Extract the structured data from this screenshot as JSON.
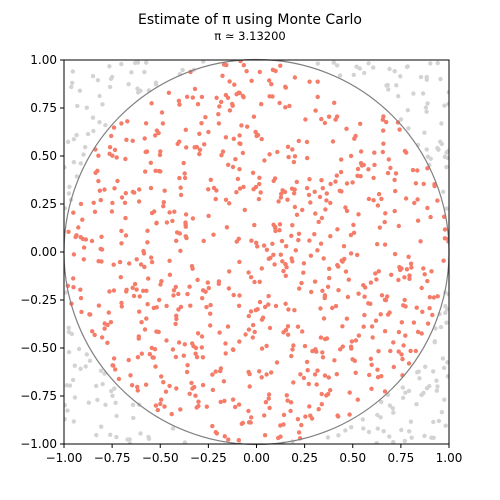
{
  "chart_data": {
    "type": "scatter",
    "title": "Estimate of π using Monte Carlo",
    "subtitle": "π ≃ 3.13200",
    "xlabel": "",
    "ylabel": "",
    "xlim": [
      -1.0,
      1.0
    ],
    "ylim": [
      -1.0,
      1.0
    ],
    "xticks": [
      "−1.00",
      "−0.75",
      "−0.50",
      "−0.25",
      "0.00",
      "0.25",
      "0.50",
      "0.75",
      "1.00"
    ],
    "yticks": [
      "−1.00",
      "−0.75",
      "−0.50",
      "−0.25",
      "0.00",
      "0.25",
      "0.50",
      "0.75",
      "1.00"
    ],
    "grid": false,
    "legend": "none",
    "circle": {
      "center": [
        0,
        0
      ],
      "radius": 1,
      "color": "#808080"
    },
    "inside_color": "#f47c68",
    "outside_color": "#d3d3d3",
    "total_points": 1000,
    "inside_points": 783,
    "pi_estimate": 3.132
  }
}
